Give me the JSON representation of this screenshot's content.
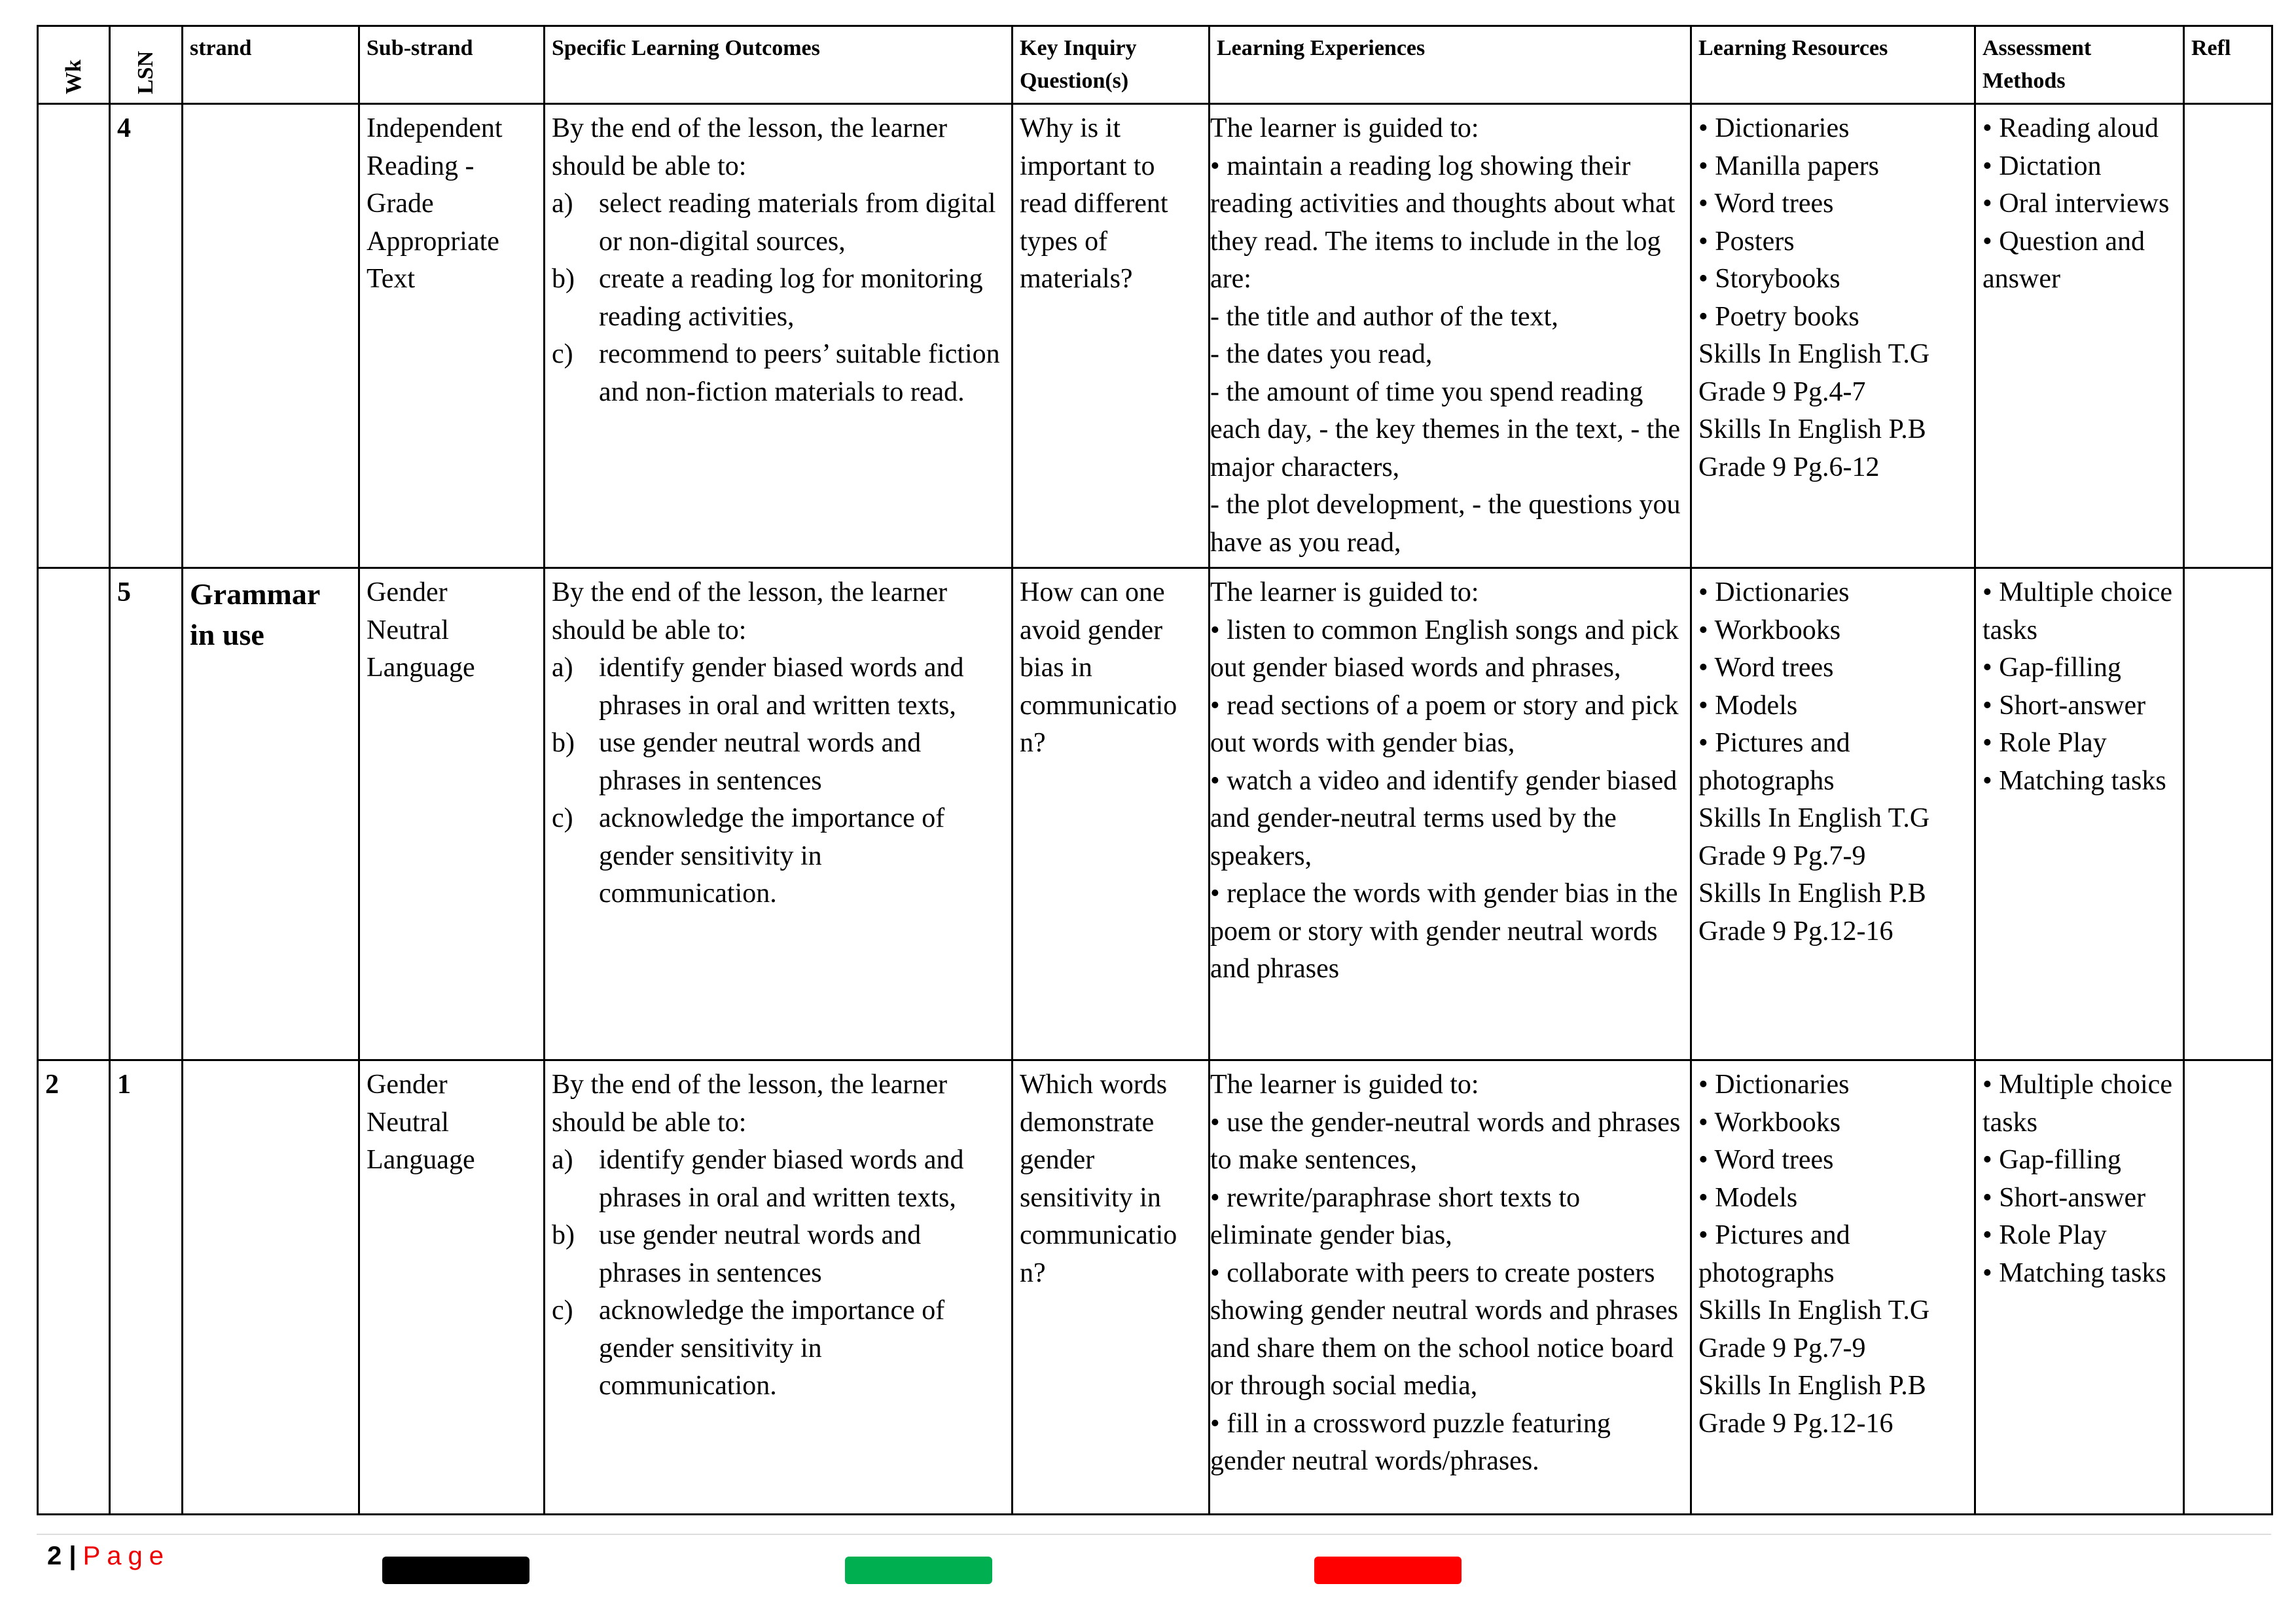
{
  "table": {
    "header": [
      "Wk",
      "LSN",
      "strand",
      "Sub-strand",
      "Specific Learning Outcomes",
      "Key Inquiry Question(s)",
      "Learning Experiences",
      "Learning Resources",
      "Assessment Methods",
      "Refl"
    ],
    "rows": [
      {
        "wk": null,
        "lsn": "4",
        "strand": null,
        "sub_strand": "Independent Reading - Grade Appropriate Text",
        "outcomes": {
          "intro": "By the end of the lesson, the learner should be able to:",
          "items": [
            {
              "label": "a)",
              "text": "select reading materials from digital or non-digital sources,"
            },
            {
              "label": "b)",
              "text": "create a reading log for monitoring reading activities,"
            },
            {
              "label": "c)",
              "text": "recommend to peers’ suitable fiction and non-fiction materials to read."
            }
          ]
        },
        "question": "Why is it important to read different types of materials?",
        "experiences": [
          "The learner is guided to:",
          "• maintain a reading log showing their reading activities and thoughts about what they read. The items to include in the log are:",
          "- the title and author of the text,",
          "- the dates you read,",
          "- the amount of time you spend reading each day, - the key themes in the text, - the major characters,",
          "- the plot development, - the questions you have as you read,"
        ],
        "resources": [
          "• Dictionaries",
          "• Manilla papers",
          "• Word trees",
          "• Posters",
          "• Storybooks",
          "• Poetry books",
          "Skills In English T.G Grade 9 Pg.4-7",
          "Skills In English P.B Grade 9 Pg.6-12"
        ],
        "assessment": [
          "• Reading aloud",
          "• Dictation",
          "• Oral interviews",
          "• Question and answer"
        ]
      },
      {
        "wk": null,
        "lsn": "5",
        "strand": "Grammar in use",
        "sub_strand": "Gender Neutral Language",
        "outcomes": {
          "intro": "By the end of the lesson, the learner should be able to:",
          "items": [
            {
              "label": "a)",
              "text": "identify gender biased words and phrases in oral and written texts,"
            },
            {
              "label": "b)",
              "text": "use gender neutral words and phrases in sentences"
            },
            {
              "label": "c)",
              "text": "acknowledge the importance of gender sensitivity in communication."
            }
          ]
        },
        "question": "How can one avoid gender bias in communicatio n?",
        "experiences": [
          "The learner is guided to:",
          "• listen to common English songs and pick out gender biased words and phrases,",
          "• read sections of a poem or story and pick out words with gender bias,",
          "• watch a video and identify gender biased and gender-neutral terms used by the speakers,",
          "• replace the words with gender bias in the poem or story with gender neutral words and phrases"
        ],
        "resources": [
          "• Dictionaries",
          "• Workbooks",
          "• Word trees",
          "• Models",
          "• Pictures and photographs",
          "Skills In English T.G Grade 9 Pg.7-9",
          "Skills In English P.B Grade 9 Pg.12-16"
        ],
        "assessment": [
          "• Multiple choice tasks",
          "• Gap-filling",
          "• Short-answer",
          "• Role Play",
          "• Matching tasks"
        ]
      },
      {
        "wk": "2",
        "lsn": "1",
        "strand": null,
        "sub_strand": "Gender Neutral Language",
        "outcomes": {
          "intro": "By the end of the lesson, the learner should be able to:",
          "items": [
            {
              "label": "a)",
              "text": "identify gender biased words and phrases in oral and written texts,"
            },
            {
              "label": "b)",
              "text": "use gender neutral words and phrases in sentences"
            },
            {
              "label": "c)",
              "text": "acknowledge the importance of gender sensitivity in communication."
            }
          ]
        },
        "question": "Which words demonstrate gender sensitivity in communicatio n?",
        "experiences": [
          "The learner is guided to:",
          "• use the gender-neutral words and phrases to make sentences,",
          "• rewrite/paraphrase short texts to eliminate gender bias,",
          "• collaborate with peers to create posters showing gender neutral words and phrases and share them on the school notice board or through social media,",
          "• fill in a crossword puzzle featuring gender neutral words/phrases."
        ],
        "resources": [
          "• Dictionaries",
          "• Workbooks",
          "• Word trees",
          "• Models",
          "• Pictures and photographs",
          "Skills In English T.G Grade 9 Pg.7-9",
          "Skills In English P.B Grade 9 Pg.12-16"
        ],
        "assessment": [
          "• Multiple choice tasks",
          "• Gap-filling",
          "• Short-answer",
          "• Role Play",
          "• Matching tasks"
        ]
      }
    ]
  },
  "footer": {
    "page_number": "2",
    "separator": "|",
    "page_label": "Page"
  }
}
